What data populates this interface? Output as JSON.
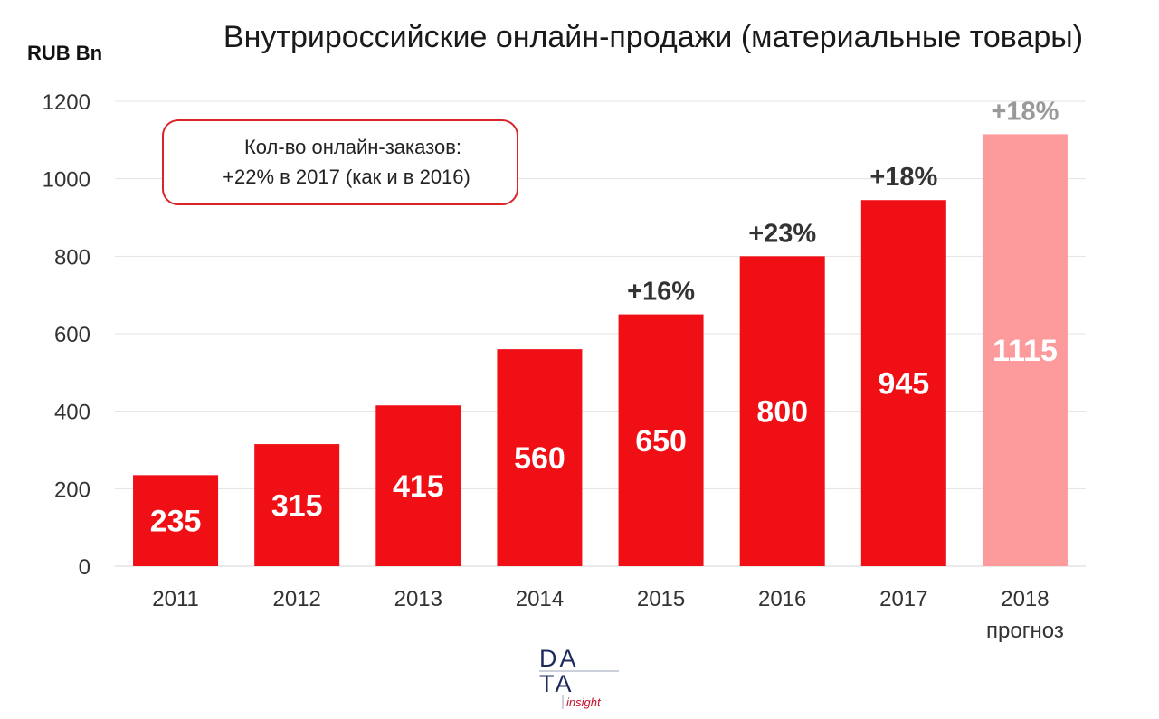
{
  "chart_data": {
    "type": "bar",
    "title": "Внутрироссийские онлайн-продажи (материальные товары)",
    "ylabel": "RUB Bn",
    "xlabel": "",
    "ylim": [
      0,
      1200
    ],
    "yticks": [
      0,
      200,
      400,
      600,
      800,
      1000,
      1200
    ],
    "grid": true,
    "categories": [
      "2011",
      "2012",
      "2013",
      "2014",
      "2015",
      "2016",
      "2017",
      "2018"
    ],
    "category_sublabels": [
      "",
      "",
      "",
      "",
      "",
      "",
      "",
      "прогноз"
    ],
    "values": [
      235,
      315,
      415,
      560,
      650,
      800,
      945,
      1115
    ],
    "forecast": [
      false,
      false,
      false,
      false,
      false,
      false,
      false,
      true
    ],
    "growth_labels": [
      "",
      "",
      "",
      "",
      "+16%",
      "+23%",
      "+18%",
      "+18%"
    ],
    "colors": {
      "actual": "#f00f14",
      "forecast": "#fc9a9c",
      "grid": "#e3e3e3",
      "forecast_growth_text": "#999999"
    }
  },
  "annotation": {
    "line1": "Кол-во онлайн-заказов:",
    "line2": "+22% в 2017 (как и в 2016)",
    "border_color": "#d9252a"
  },
  "logo": {
    "row1": "DA",
    "row2": "TA",
    "tag": "insight"
  }
}
